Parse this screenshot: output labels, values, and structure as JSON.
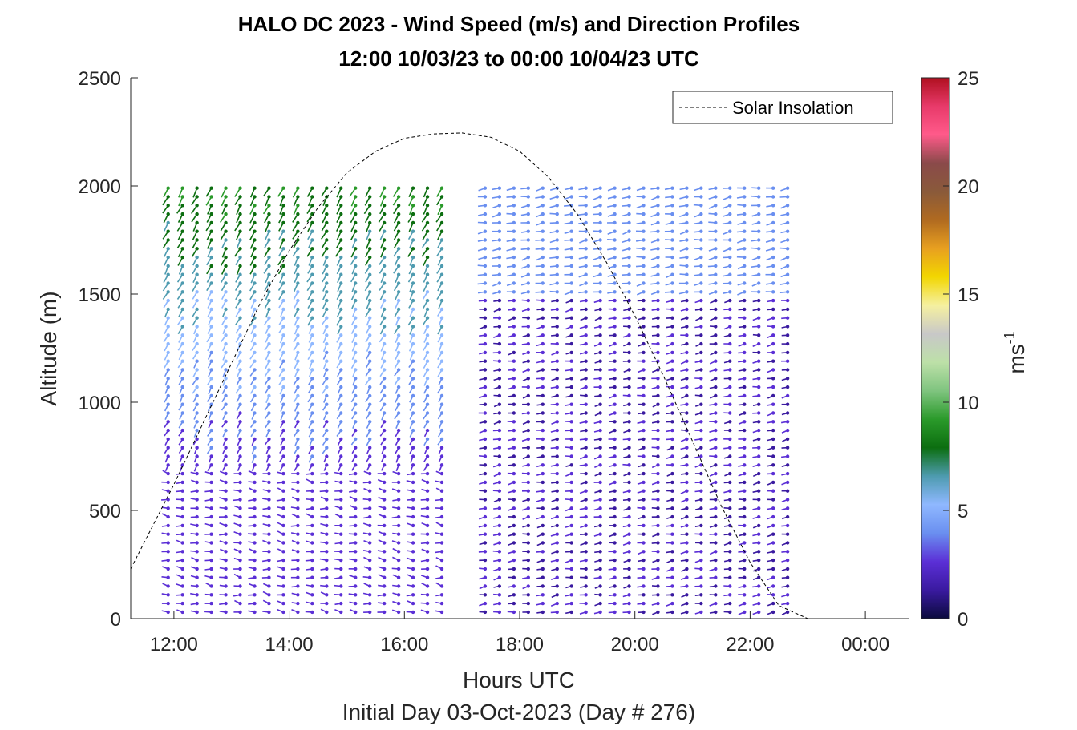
{
  "chart_data": {
    "type": "wind-barb-profile",
    "title_line1": "HALO DC 2023 - Wind Speed (m/s) and Direction Profiles",
    "title_line2": "12:00 10/03/23 to 00:00 10/04/23  UTC",
    "xlabel": "Hours UTC",
    "subtitle": "Initial Day 03-Oct-2023 (Day # 276)",
    "ylabel": "Altitude (m)",
    "x_ticks": [
      "12:00",
      "14:00",
      "16:00",
      "18:00",
      "20:00",
      "22:00",
      "00:00"
    ],
    "x_tick_hours": [
      12,
      14,
      16,
      18,
      20,
      22,
      24
    ],
    "xlim_hours": [
      11.25,
      24.75
    ],
    "y_ticks": [
      "0",
      "500",
      "1000",
      "1500",
      "2000",
      "2500"
    ],
    "y_tick_values": [
      0,
      500,
      1000,
      1500,
      2000,
      2500
    ],
    "ylim": [
      0,
      2500
    ],
    "colorbar": {
      "label": "ms",
      "label_superscript": "-1",
      "tick_labels": [
        "0",
        "5",
        "10",
        "15",
        "20",
        "25"
      ],
      "tick_values": [
        0,
        5,
        10,
        15,
        20,
        25
      ],
      "range": [
        0,
        25
      ],
      "colors": [
        "#0b0b3d",
        "#3a1aa0",
        "#5b2fd6",
        "#6a8ff0",
        "#8fb8ff",
        "#4e9bb0",
        "#0c6e10",
        "#2a9a2a",
        "#7fc47f",
        "#bde0a8",
        "#c8c8c8",
        "#f5f0a0",
        "#f2d600",
        "#e8a020",
        "#b06a20",
        "#8a5a3a",
        "#8a4a4a",
        "#ff5a8a",
        "#e83a6a",
        "#b01020"
      ]
    },
    "legend": {
      "entries": [
        "Solar Insolation"
      ],
      "placement": "top-right"
    },
    "solar_insolation_curve": {
      "hours": [
        11.25,
        12,
        12.5,
        13,
        13.5,
        14,
        14.5,
        15,
        15.5,
        16,
        16.5,
        17,
        17.5,
        18,
        18.5,
        19,
        19.5,
        20,
        20.5,
        21,
        21.5,
        22,
        22.5,
        23,
        23.25,
        23.5,
        24,
        24.75
      ],
      "altitude": [
        230,
        620,
        900,
        1180,
        1460,
        1700,
        1900,
        2060,
        2160,
        2220,
        2240,
        2245,
        2225,
        2160,
        2040,
        1870,
        1650,
        1400,
        1120,
        820,
        520,
        260,
        60,
        0,
        0,
        0,
        0,
        0
      ]
    },
    "profiles_summary": {
      "profile_interval_min": 15,
      "first_profile_hour": 11.9,
      "last_profile_hour": 22.85,
      "max_altitude_m": 2000,
      "gap_hours": [
        16.7,
        17.3
      ],
      "typical_speed_low_m_s": 2,
      "typical_speed_high_m_s": 8
    }
  }
}
